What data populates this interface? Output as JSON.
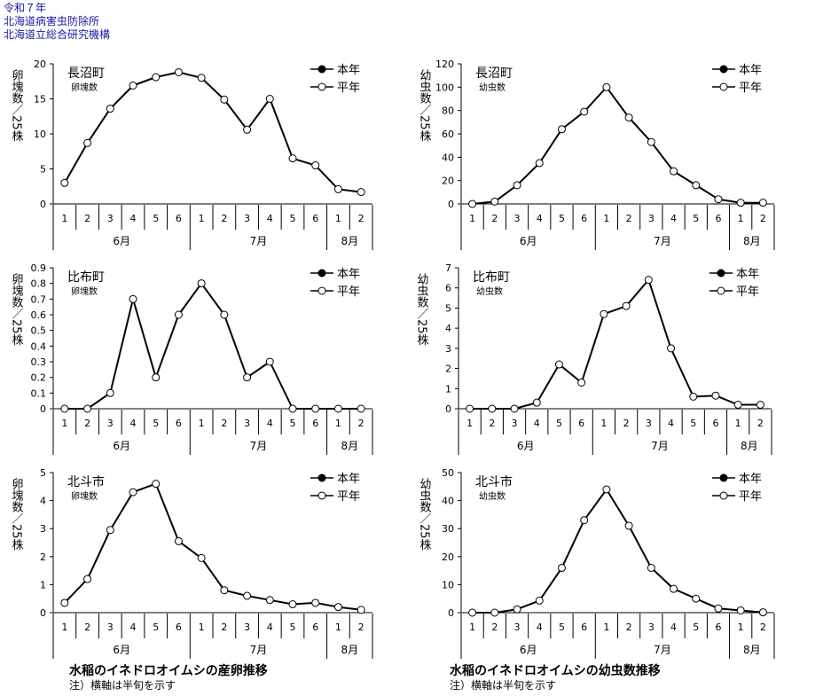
{
  "header": {
    "line1": "令和７年",
    "line2": "北海道病害虫防除所",
    "line3": "北海道立総合研究機構"
  },
  "colors": {
    "line": "#000000",
    "marker_fill": "#ffffff",
    "legend_filled": "#000000",
    "axis": "#000000",
    "header_text": "#1a1aa0"
  },
  "legend": {
    "current": "本年",
    "normal": "平年"
  },
  "x_axis": {
    "ticks": [
      "1",
      "2",
      "3",
      "4",
      "5",
      "6",
      "1",
      "2",
      "3",
      "4",
      "5",
      "6",
      "1",
      "2"
    ],
    "months": [
      {
        "label": "6月",
        "span": 6
      },
      {
        "label": "7月",
        "span": 6
      },
      {
        "label": "8月",
        "span": 2
      }
    ]
  },
  "chart_data": [
    {
      "type": "line",
      "location": "長沼町",
      "subtitle": "卵塊数",
      "ylabel": "卵塊数／25株",
      "ylim": [
        0,
        20
      ],
      "yticks": [
        "0",
        "5",
        "10",
        "15",
        "20"
      ],
      "series": [
        {
          "name": "平年",
          "values": [
            3.0,
            8.7,
            13.6,
            16.9,
            18.1,
            18.8,
            18.0,
            14.9,
            10.6,
            15.0,
            6.5,
            5.5,
            2.1,
            1.7
          ]
        }
      ]
    },
    {
      "type": "line",
      "location": "長沼町",
      "subtitle": "幼虫数",
      "ylabel": "幼虫数／25株",
      "ylim": [
        0,
        120
      ],
      "yticks": [
        "0",
        "20",
        "40",
        "60",
        "80",
        "100",
        "120"
      ],
      "series": [
        {
          "name": "平年",
          "values": [
            0,
            2,
            16,
            35,
            64,
            79,
            100,
            74,
            53,
            28,
            16,
            4,
            1,
            1
          ]
        }
      ]
    },
    {
      "type": "line",
      "location": "比布町",
      "subtitle": "卵塊数",
      "ylabel": "卵塊数／25株",
      "ylim": [
        0,
        0.9
      ],
      "yticks": [
        "0",
        "0.1",
        "0.2",
        "0.3",
        "0.4",
        "0.5",
        "0.6",
        "0.7",
        "0.8",
        "0.9"
      ],
      "series": [
        {
          "name": "平年",
          "values": [
            0,
            0,
            0.1,
            0.7,
            0.2,
            0.6,
            0.8,
            0.6,
            0.2,
            0.3,
            0,
            0,
            0,
            0
          ]
        }
      ]
    },
    {
      "type": "line",
      "location": "比布町",
      "subtitle": "幼虫数",
      "ylabel": "幼虫数／25株",
      "ylim": [
        0,
        7
      ],
      "yticks": [
        "0",
        "1",
        "2",
        "3",
        "4",
        "5",
        "6",
        "7"
      ],
      "series": [
        {
          "name": "平年",
          "values": [
            0,
            0,
            0,
            0.3,
            2.2,
            1.3,
            4.7,
            5.1,
            6.4,
            3.0,
            0.6,
            0.65,
            0.2,
            0.2
          ]
        }
      ]
    },
    {
      "type": "line",
      "location": "北斗市",
      "subtitle": "卵塊数",
      "ylabel": "卵塊数／25株",
      "ylim": [
        0,
        5
      ],
      "yticks": [
        "0",
        "1",
        "2",
        "3",
        "4",
        "5"
      ],
      "series": [
        {
          "name": "平年",
          "values": [
            0.35,
            1.2,
            2.95,
            4.3,
            4.6,
            2.55,
            1.95,
            0.8,
            0.6,
            0.45,
            0.3,
            0.35,
            0.2,
            0.1
          ]
        }
      ]
    },
    {
      "type": "line",
      "location": "北斗市",
      "subtitle": "幼虫数",
      "ylabel": "幼虫数／25株",
      "ylim": [
        0,
        50
      ],
      "yticks": [
        "0",
        "10",
        "20",
        "30",
        "40",
        "50"
      ],
      "series": [
        {
          "name": "平年",
          "values": [
            0,
            0,
            1.2,
            4.3,
            16,
            33,
            44,
            31,
            16,
            8.5,
            5,
            1.5,
            0.8,
            0.1
          ]
        }
      ]
    }
  ],
  "captions": {
    "left_title": "水稲のイネドロオイムシの産卵推移",
    "left_note": "注）横軸は半旬を示す",
    "right_title": "水稲のイネドロオイムシの幼虫数推移",
    "right_note": "注）横軸は半旬を示す"
  }
}
